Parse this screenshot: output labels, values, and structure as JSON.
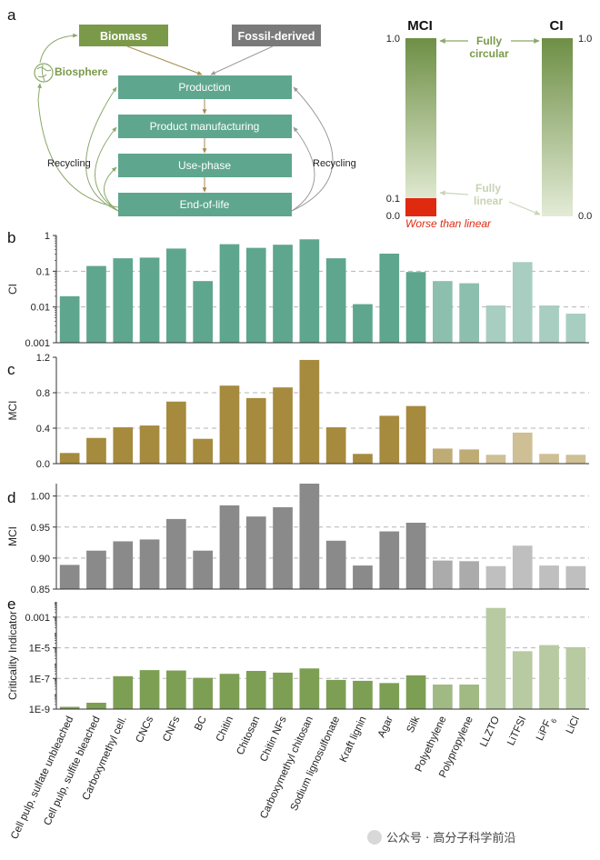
{
  "panel_labels": {
    "a": "a",
    "b": "b",
    "c": "c",
    "d": "d",
    "e": "e"
  },
  "flow": {
    "sources": [
      "Biomass",
      "Fossil-derived"
    ],
    "biosphere": "Biosphere",
    "stages": [
      "Production",
      "Product manufacturing",
      "Use-phase",
      "End-of-life"
    ],
    "recycling_left": "Recycling",
    "recycling_right": "Recycling"
  },
  "scales": {
    "mci_title": "MCI",
    "ci_title": "CI",
    "mci_ticks": [
      "1.0",
      "0.1",
      "0.0"
    ],
    "ci_ticks": [
      "1.0",
      "0.0"
    ],
    "fully_circular": [
      "Fully",
      "circular"
    ],
    "fully_linear": [
      "Fully",
      "linear"
    ],
    "worse_than_linear": "Worse than linear"
  },
  "colors": {
    "flow_box": "#5fa68f",
    "biomass": "#7a9a4a",
    "fossil": "#7a7a7a",
    "arrow_green": "#8aa86a",
    "arrow_brown": "#a88a50",
    "worse_red": "#e02a10",
    "scale_top": "#6e8f45",
    "scale_bottom": "#dfe8d0"
  },
  "chart_data": [
    {
      "type": "bar",
      "panel": "b",
      "scale": "log",
      "ylabel": "CI",
      "ylim": [
        0.001,
        1
      ],
      "yticks": [
        1,
        0.1,
        0.01,
        0.001
      ],
      "ytick_labels": [
        "1",
        "0.1",
        "0.01",
        "0.001"
      ],
      "gridlines": [
        0.1,
        0.01
      ],
      "categories": [
        "Cell pulp, sulfate unbleached",
        "Cell pulp, sulfite bleached",
        "Carboxymethyl cell.",
        "CNCs",
        "CNFs",
        "BC",
        "Chitin",
        "Chitosan",
        "Chitin NFs",
        "Carboxymethyl chitosan",
        "Sodium lignosulfonate",
        "Kraft lignin",
        "Agar",
        "Silk",
        "Polyethylene",
        "Polypropylene",
        "LLZTO",
        "LiTFSI",
        "LiPF6",
        "LiCl"
      ],
      "values": [
        0.02,
        0.14,
        0.23,
        0.24,
        0.43,
        0.053,
        0.57,
        0.45,
        0.55,
        0.78,
        0.23,
        0.012,
        0.31,
        0.095,
        0.053,
        0.046,
        0.011,
        0.18,
        0.011,
        0.0065
      ],
      "color": "#5fa68f"
    },
    {
      "type": "bar",
      "panel": "c",
      "ylabel": "MCI",
      "ylim": [
        0,
        1.2
      ],
      "yticks": [
        0,
        0.4,
        0.8,
        1.2
      ],
      "ytick_labels": [
        "0.0",
        "0.4",
        "0.8",
        "1.2"
      ],
      "gridlines": [
        0.4,
        0.8
      ],
      "categories": [
        "Cell pulp, sulfate unbleached",
        "Cell pulp, sulfite bleached",
        "Carboxymethyl cell.",
        "CNCs",
        "CNFs",
        "BC",
        "Chitin",
        "Chitosan",
        "Chitin NFs",
        "Carboxymethyl chitosan",
        "Sodium lignosulfonate",
        "Kraft lignin",
        "Agar",
        "Silk",
        "Polyethylene",
        "Polypropylene",
        "LLZTO",
        "LiTFSI",
        "LiPF6",
        "LiCl"
      ],
      "values": [
        0.12,
        0.29,
        0.41,
        0.43,
        0.7,
        0.28,
        0.88,
        0.74,
        0.86,
        1.17,
        0.41,
        0.11,
        0.54,
        0.65,
        0.17,
        0.16,
        0.1,
        0.35,
        0.11,
        0.1
      ],
      "color": "#a68a3e"
    },
    {
      "type": "bar",
      "panel": "d",
      "ylabel": "MCI",
      "ylim": [
        0.85,
        1.02
      ],
      "yticks": [
        0.85,
        0.9,
        0.95,
        1.0
      ],
      "ytick_labels": [
        "0.85",
        "0.90",
        "0.95",
        "1.00"
      ],
      "gridlines": [
        0.9,
        0.95,
        1.0
      ],
      "categories": [
        "Cell pulp, sulfate unbleached",
        "Cell pulp, sulfite bleached",
        "Carboxymethyl cell.",
        "CNCs",
        "CNFs",
        "BC",
        "Chitin",
        "Chitosan",
        "Chitin NFs",
        "Carboxymethyl chitosan",
        "Sodium lignosulfonate",
        "Kraft lignin",
        "Agar",
        "Silk",
        "Polyethylene",
        "Polypropylene",
        "LLZTO",
        "LiTFSI",
        "LiPF6",
        "LiCl"
      ],
      "values": [
        0.889,
        0.912,
        0.927,
        0.93,
        0.963,
        0.912,
        0.985,
        0.967,
        0.982,
        1.02,
        0.928,
        0.888,
        0.943,
        0.957,
        0.896,
        0.895,
        0.887,
        0.92,
        0.888,
        0.887
      ],
      "color": "#8a8a8a"
    },
    {
      "type": "bar",
      "panel": "e",
      "scale": "log",
      "ylabel": "Criticality Indicator",
      "ylim": [
        1e-09,
        0.01
      ],
      "yticks": [
        0.001,
        1e-05,
        1e-07,
        1e-09
      ],
      "ytick_labels": [
        "0.001",
        "1E-5",
        "1E-7",
        "1E-9"
      ],
      "gridlines": [
        0.001,
        1e-05,
        1e-07
      ],
      "categories": [
        "Cell pulp, sulfate unbleached",
        "Cell pulp, sulfite bleached",
        "Carboxymethyl cell.",
        "CNCs",
        "CNFs",
        "BC",
        "Chitin",
        "Chitosan",
        "Chitin NFs",
        "Carboxymethyl chitosan",
        "Sodium lignosulfonate",
        "Kraft lignin",
        "Agar",
        "Silk",
        "Polyethylene",
        "Polypropylene",
        "LLZTO",
        "LiTFSI",
        "LiPF6",
        "LiCl"
      ],
      "values": [
        1.4e-09,
        2.6e-09,
        1.4e-07,
        3.5e-07,
        3.3e-07,
        1.1e-07,
        2e-07,
        3.1e-07,
        2.4e-07,
        4.5e-07,
        8e-08,
        7e-08,
        5e-08,
        1.6e-07,
        4e-08,
        4e-08,
        0.004,
        6e-06,
        1.5e-05,
        1.1e-05
      ],
      "color": "#7d9f54"
    }
  ],
  "category_labels": [
    "Cell pulp, sulfate unbleached",
    "Cell pulp, sulfite bleached",
    "Carboxymethyl cell.",
    "CNCs",
    "CNFs",
    "BC",
    "Chitin",
    "Chitosan",
    "Chitin NFs",
    "Carboxymethyl chitosan",
    "Sodium lignosulfonate",
    "Kraft lignin",
    "Agar",
    "Silk",
    "Polyethylene",
    "Polypropylene",
    "LLZTO",
    "LiTFSI",
    "LiPF",
    "LiCl"
  ],
  "lipf_subscript": "6",
  "watermark": "公众号 · 高分子科学前沿"
}
